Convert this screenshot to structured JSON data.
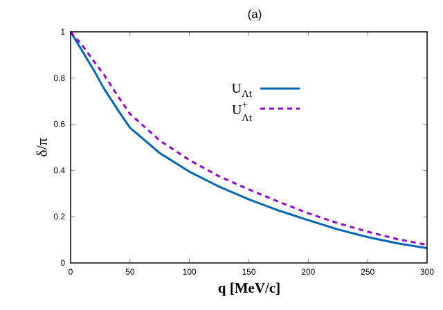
{
  "chart_data": {
    "type": "line",
    "title": "(a)",
    "xlabel": "q [MeV/c]",
    "ylabel": "δ/π",
    "xlim": [
      0,
      300
    ],
    "ylim": [
      0,
      1
    ],
    "xticks": [
      0,
      50,
      100,
      150,
      200,
      250,
      300
    ],
    "yticks": [
      0,
      0.2,
      0.4,
      0.6,
      0.8,
      1
    ],
    "ytick_labels": [
      "0",
      "0.2",
      "0.4",
      "0.6",
      "0.8",
      "1"
    ],
    "grid": false,
    "legend_position": "upper right (inside)",
    "x": [
      0,
      10,
      20,
      28,
      40,
      50,
      75,
      100,
      125,
      150,
      175,
      200,
      225,
      250,
      275,
      300
    ],
    "series": [
      {
        "name": "U_Λt",
        "label_main": "U",
        "label_sup": "",
        "label_sub": "Λt",
        "style": "solid",
        "color": "#0066b3",
        "values": [
          1.0,
          0.915,
          0.83,
          0.755,
          0.66,
          0.585,
          0.475,
          0.395,
          0.33,
          0.275,
          0.227,
          0.185,
          0.145,
          0.112,
          0.085,
          0.064
        ]
      },
      {
        "name": "U⁺_Λt",
        "label_main": "U",
        "label_sup": "+",
        "label_sub": "Λt",
        "style": "dashed",
        "color": "#9400d3",
        "values": [
          1.0,
          0.94,
          0.87,
          0.815,
          0.72,
          0.645,
          0.53,
          0.445,
          0.375,
          0.318,
          0.265,
          0.215,
          0.172,
          0.135,
          0.103,
          0.078
        ]
      }
    ]
  }
}
